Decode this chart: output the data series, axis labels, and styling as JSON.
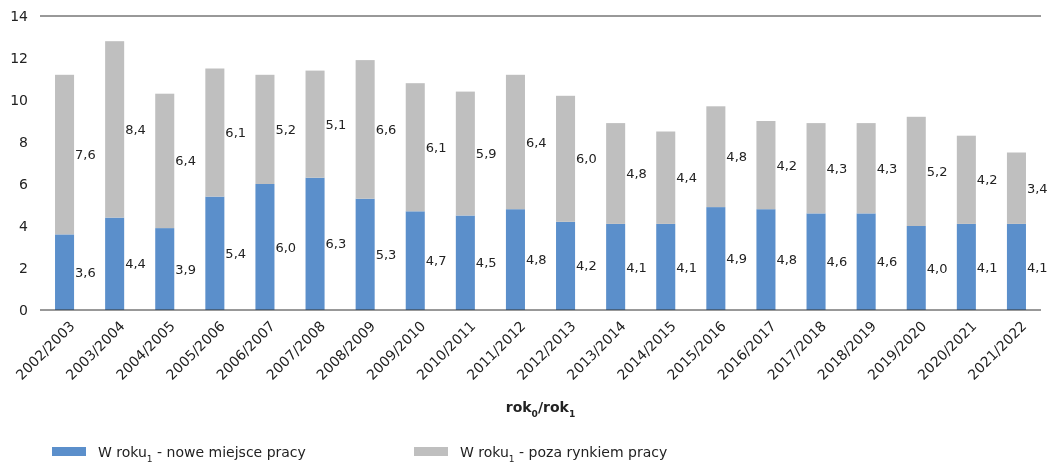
{
  "chart_data": {
    "type": "bar",
    "stacked": true,
    "xlabel": "rok$_{0}$/rok$_{1}$",
    "categories": [
      "2002/2003",
      "2003/2004",
      "2004/2005",
      "2005/2006",
      "2006/2007",
      "2007/2008",
      "2008/2009",
      "2009/2010",
      "2010/2011",
      "2011/2012",
      "2012/2013",
      "2013/2014",
      "2014/2015",
      "2015/2016",
      "2016/2017",
      "2017/2018",
      "2018/2019",
      "2019/2020",
      "2020/2021",
      "2021/2022"
    ],
    "series": [
      {
        "name": "W roku$_{1}$ - nowe miejsce pracy",
        "color": "#5b8fcb",
        "values": [
          3.6,
          4.4,
          3.9,
          5.4,
          6.0,
          6.3,
          5.3,
          4.7,
          4.5,
          4.8,
          4.2,
          4.1,
          4.1,
          4.9,
          4.8,
          4.6,
          4.6,
          4.0,
          4.1,
          4.1
        ],
        "value_labels": [
          "3,6",
          "4,4",
          "3,9",
          "5,4",
          "6,0",
          "6,3",
          "5,3",
          "4,7",
          "4,5",
          "4,8",
          "4,2",
          "4,1",
          "4,1",
          "4,9",
          "4,8",
          "4,6",
          "4,6",
          "4,0",
          "4,1",
          "4,1"
        ]
      },
      {
        "name": "W roku$_{1}$ - poza rynkiem pracy",
        "color": "#bfbfbf",
        "values": [
          7.6,
          8.4,
          6.4,
          6.1,
          5.2,
          5.1,
          6.6,
          6.1,
          5.9,
          6.4,
          6.0,
          4.8,
          4.4,
          4.8,
          4.2,
          4.3,
          4.3,
          5.2,
          4.2,
          3.4
        ],
        "value_labels": [
          "7,6",
          "8,4",
          "6,4",
          "6,1",
          "5,2",
          "5,1",
          "6,6",
          "6,1",
          "5,9",
          "6,4",
          "6,0",
          "4,8",
          "4,4",
          "4,8",
          "4,2",
          "4,3",
          "4,3",
          "5,2",
          "4,2",
          "3,4"
        ]
      }
    ],
    "ylim": [
      0,
      14
    ],
    "yticks": [
      0,
      2,
      4,
      6,
      8,
      10,
      12,
      14
    ],
    "grid": false,
    "legend": "bottom"
  }
}
